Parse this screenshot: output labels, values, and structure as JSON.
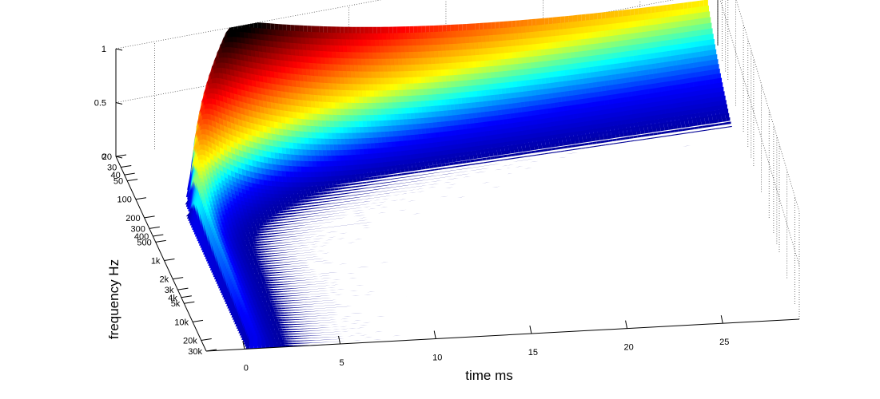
{
  "chart_data": {
    "type": "surface",
    "title": "",
    "xlabel": "time   ms",
    "ylabel": "frequency    Hz",
    "zlabel": "",
    "colormap": "jet",
    "colormap_stops": [
      "#00008f",
      "#0000ff",
      "#00ffff",
      "#ffff00",
      "#ff7f00",
      "#ff0000",
      "#800000",
      "#000000"
    ],
    "xlim": [
      -2,
      29
    ],
    "ylim_hz": [
      20,
      30000
    ],
    "zlim": [
      0,
      1
    ],
    "yscale": "log",
    "box_grid": "dotted",
    "x_ticks": [
      {
        "value": 0,
        "label": "0"
      },
      {
        "value": 5,
        "label": "5"
      },
      {
        "value": 10,
        "label": "10"
      },
      {
        "value": 15,
        "label": "15"
      },
      {
        "value": 20,
        "label": "20"
      },
      {
        "value": 25,
        "label": "25"
      }
    ],
    "y_ticks": [
      {
        "value": 20,
        "label": "20"
      },
      {
        "value": 30,
        "label": "30"
      },
      {
        "value": 40,
        "label": "40"
      },
      {
        "value": 50,
        "label": "50"
      },
      {
        "value": 100,
        "label": "100"
      },
      {
        "value": 200,
        "label": "200"
      },
      {
        "value": 300,
        "label": "300"
      },
      {
        "value": 400,
        "label": "400"
      },
      {
        "value": 500,
        "label": "500"
      },
      {
        "value": 1000,
        "label": "1k"
      },
      {
        "value": 2000,
        "label": "2k"
      },
      {
        "value": 3000,
        "label": "3k"
      },
      {
        "value": 4000,
        "label": "4k"
      },
      {
        "value": 5000,
        "label": "5k"
      },
      {
        "value": 10000,
        "label": "10k"
      },
      {
        "value": 20000,
        "label": "20k"
      },
      {
        "value": 30000,
        "label": "30k"
      }
    ],
    "z_ticks": [
      {
        "value": 0,
        "label": "0"
      },
      {
        "value": 0.5,
        "label": "0.5"
      },
      {
        "value": 1,
        "label": "1"
      }
    ]
  }
}
